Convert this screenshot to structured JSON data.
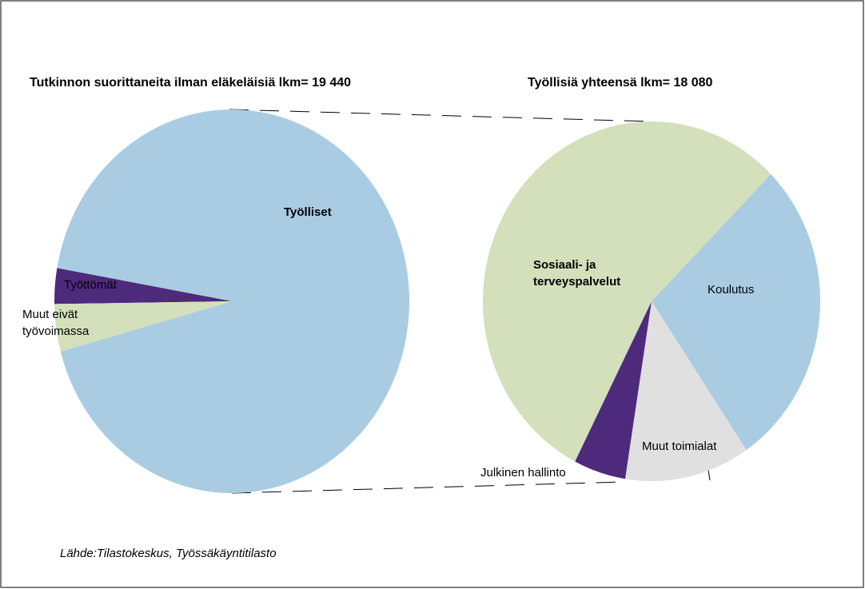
{
  "chart_data": [
    {
      "type": "pie",
      "title": "Tutkinnon suorittaneita ilman eläkeläisiä lkm= 19 440",
      "categories": [
        "Työlliset",
        "Työttömät",
        "Muut eivät\ntyövoimassa"
      ],
      "values": [
        93,
        3,
        4
      ],
      "colors": [
        "#a9cce3",
        "#4e2a7c",
        "#d3e0bb"
      ]
    },
    {
      "type": "pie",
      "title": "Työllisiä yhteensä lkm= 18 080",
      "categories": [
        "Koulutus",
        "Muut toimialat",
        "Julkinen hallinto",
        "Sosiaali- ja\nterveyspalvelut"
      ],
      "values": [
        28,
        12,
        5,
        55
      ],
      "colors": [
        "#a9cce3",
        "#e0e0e0",
        "#4e2a7c",
        "#d3e0bb"
      ]
    }
  ],
  "source": "Lähde:Tilastokeskus, Työssäkäyntitilasto"
}
